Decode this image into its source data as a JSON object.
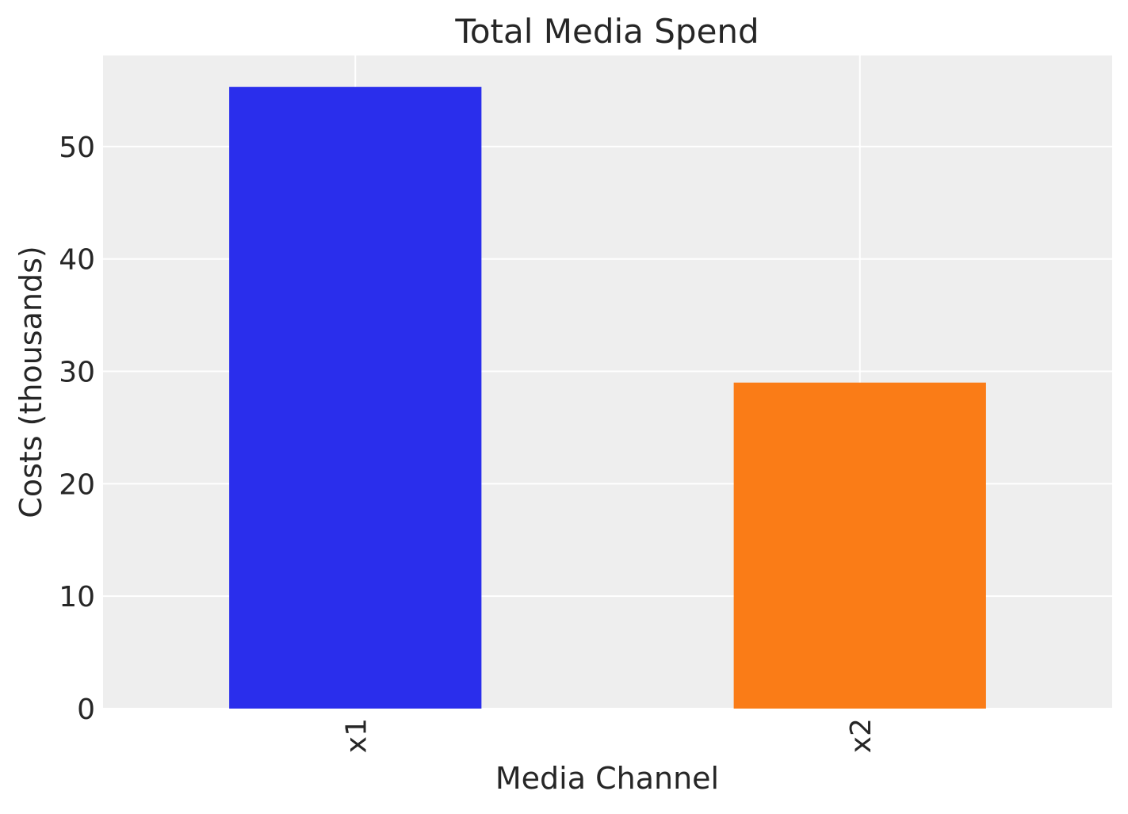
{
  "chart_data": {
    "type": "bar",
    "title": "Total Media Spend",
    "xlabel": "Media Channel",
    "ylabel": "Costs (thousands)",
    "categories": [
      "x1",
      "x2"
    ],
    "values": [
      55.3,
      29.0
    ],
    "colors": [
      "#2a2eec",
      "#fa7c17"
    ],
    "ylim": [
      0,
      58.1
    ],
    "yticks": [
      0,
      10,
      20,
      30,
      40,
      50
    ],
    "grid": true,
    "background": "#eeeeee",
    "legend": "none"
  }
}
